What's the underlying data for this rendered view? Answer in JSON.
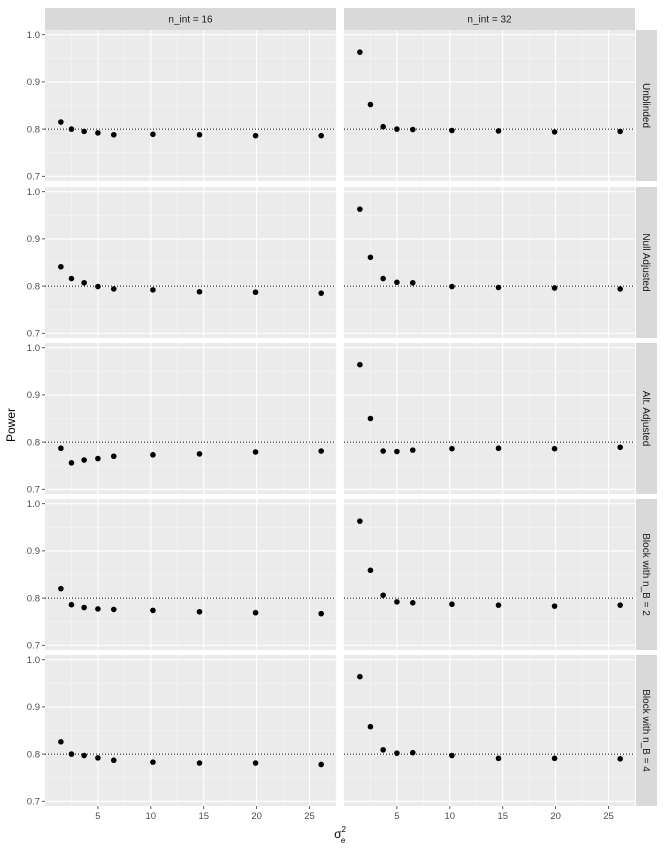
{
  "chart_data": {
    "type": "scatter",
    "facet_columns": [
      "n_int = 16",
      "n_int = 32"
    ],
    "facet_rows": [
      "Unblinded",
      "Null Adjusted",
      "Alt. Adjusted",
      "Block with n_B = 2",
      "Block with n_B = 4"
    ],
    "xlabel_main": "σ",
    "xlabel_sup": "2",
    "xlabel_sub": "e",
    "ylabel": "Power",
    "xlim": [
      0,
      27.5
    ],
    "ylim": [
      0.69,
      1.01
    ],
    "x_ticks": [
      5,
      10,
      15,
      20,
      25
    ],
    "y_ticks": [
      0.7,
      0.8,
      0.9,
      1.0
    ],
    "y_tick_labels": [
      "0.7",
      "0.8",
      "0.9",
      "1.0"
    ],
    "reference_line": 0.8,
    "reference_line_style": "dotted",
    "x": [
      1.5,
      2.5,
      3.7,
      5.0,
      6.5,
      10.2,
      14.6,
      19.9,
      26.1
    ],
    "panels": [
      {
        "row": 0,
        "col": 0,
        "y": [
          0.815,
          0.8,
          0.795,
          0.792,
          0.788,
          0.789,
          0.788,
          0.786,
          0.786
        ]
      },
      {
        "row": 0,
        "col": 1,
        "y": [
          0.963,
          0.852,
          0.805,
          0.8,
          0.799,
          0.797,
          0.796,
          0.794,
          0.795
        ]
      },
      {
        "row": 1,
        "col": 0,
        "y": [
          0.841,
          0.816,
          0.807,
          0.799,
          0.794,
          0.792,
          0.788,
          0.787,
          0.785
        ]
      },
      {
        "row": 1,
        "col": 1,
        "y": [
          0.963,
          0.861,
          0.816,
          0.808,
          0.807,
          0.799,
          0.797,
          0.796,
          0.794
        ]
      },
      {
        "row": 2,
        "col": 0,
        "y": [
          0.787,
          0.756,
          0.762,
          0.765,
          0.77,
          0.773,
          0.775,
          0.779,
          0.781
        ]
      },
      {
        "row": 2,
        "col": 1,
        "y": [
          0.964,
          0.85,
          0.781,
          0.78,
          0.783,
          0.786,
          0.787,
          0.786,
          0.789
        ]
      },
      {
        "row": 3,
        "col": 0,
        "y": [
          0.82,
          0.786,
          0.78,
          0.777,
          0.776,
          0.774,
          0.771,
          0.769,
          0.767
        ]
      },
      {
        "row": 3,
        "col": 1,
        "y": [
          0.963,
          0.859,
          0.806,
          0.792,
          0.79,
          0.787,
          0.785,
          0.783,
          0.785
        ]
      },
      {
        "row": 4,
        "col": 0,
        "y": [
          0.826,
          0.8,
          0.797,
          0.792,
          0.787,
          0.783,
          0.781,
          0.781,
          0.778
        ]
      },
      {
        "row": 4,
        "col": 1,
        "y": [
          0.964,
          0.858,
          0.809,
          0.802,
          0.803,
          0.797,
          0.791,
          0.791,
          0.79
        ]
      }
    ],
    "grid": true,
    "legend": "none"
  }
}
